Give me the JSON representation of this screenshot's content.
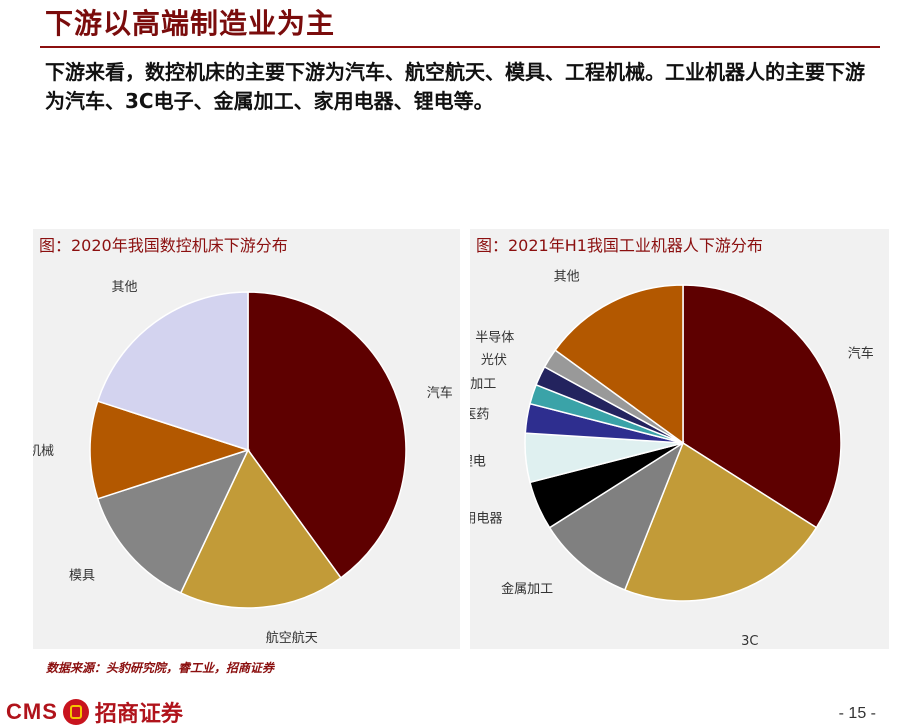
{
  "slide": {
    "title": "下游以高端制造业为主",
    "intro": "下游来看，数控机床的主要下游为汽车、航空航天、模具、工程机械。工业机器人的主要下游为汽车、3C电子、金属加工、家用电器、锂电等。",
    "source": "数据来源：头豹研究院，睿工业，招商证券",
    "logo_text": "CMS",
    "logo_cn": "招商证券",
    "page_number": "- 15 -"
  },
  "chart_data": [
    {
      "type": "pie",
      "title": "图：2020年我国数控机床下游分布",
      "categories": [
        "汽车",
        "航空航天",
        "模具",
        "工程机械",
        "其他"
      ],
      "values": [
        40,
        17,
        13,
        10,
        20
      ],
      "colors": [
        "#5e0000",
        "#c29b38",
        "#858585",
        "#b35800",
        "#d3d3ef"
      ]
    },
    {
      "type": "pie",
      "title": "图：2021年H1我国工业机器人下游分布",
      "categories": [
        "汽车",
        "3C",
        "金属加工",
        "家用电器",
        "锂电",
        "食品医药",
        "塑料加工",
        "光伏",
        "半导体",
        "其他"
      ],
      "values": [
        34,
        22,
        10,
        5,
        5,
        3,
        2,
        2,
        2,
        15
      ],
      "colors": [
        "#5e0000",
        "#c29b38",
        "#808080",
        "#000000",
        "#dff0f0",
        "#2e2e8f",
        "#3aa3a8",
        "#23235e",
        "#999999",
        "#b35800"
      ]
    }
  ]
}
